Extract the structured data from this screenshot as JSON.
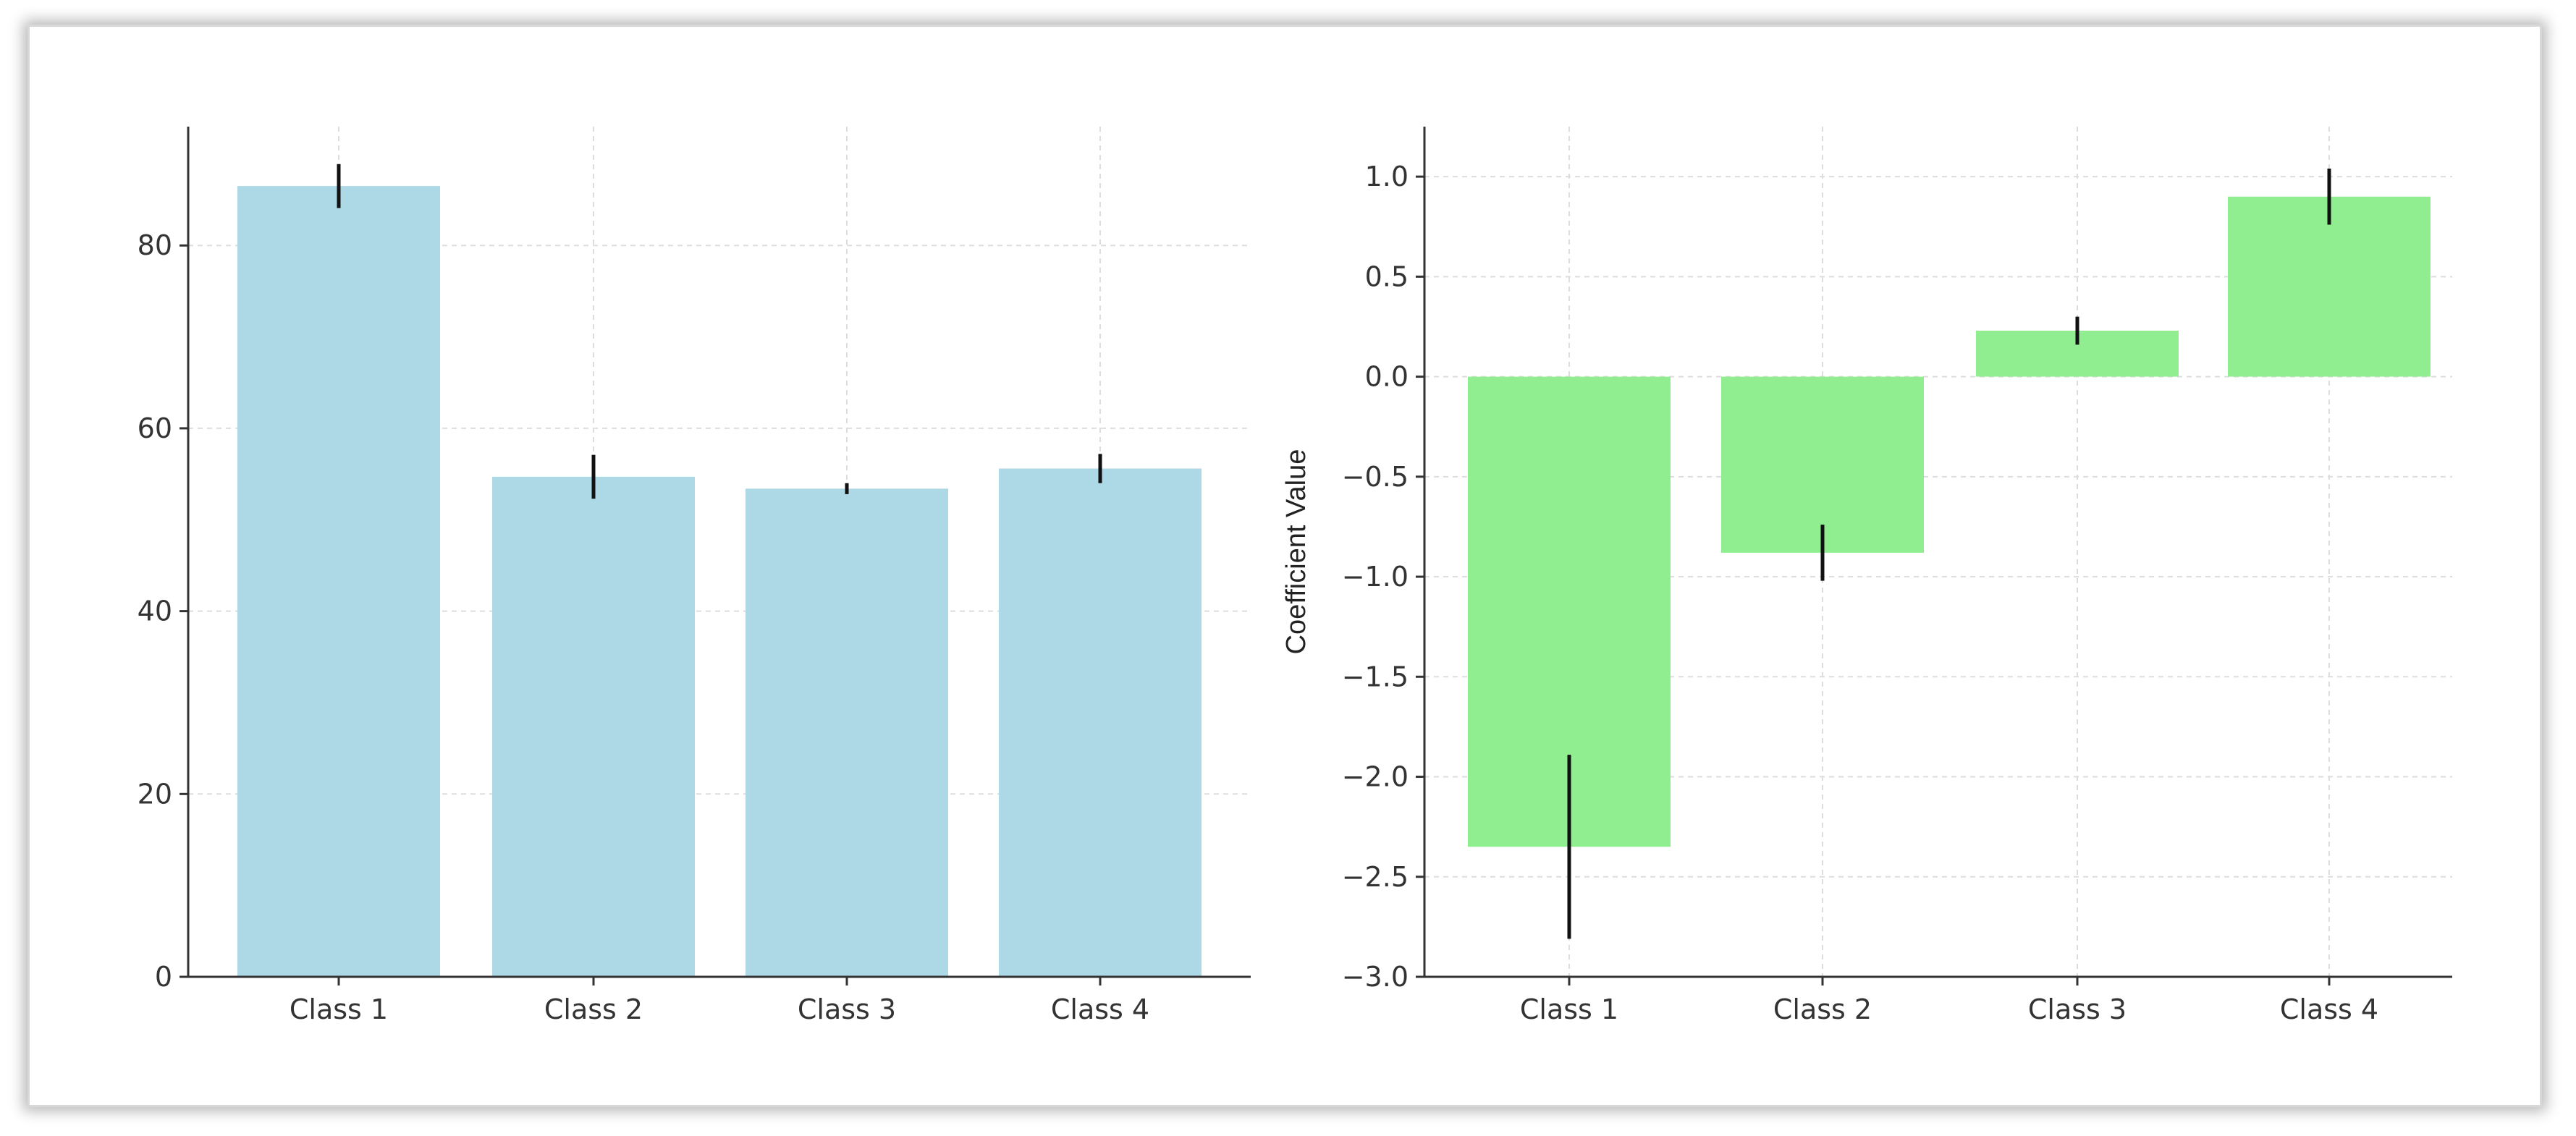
{
  "chart_data": [
    {
      "type": "bar",
      "title": "",
      "xlabel": "",
      "ylabel": "",
      "categories": [
        "Class 1",
        "Class 2",
        "Class 3",
        "Class 4"
      ],
      "values": [
        86.5,
        54.7,
        53.4,
        55.6
      ],
      "errors": [
        2.4,
        2.4,
        0.6,
        1.6
      ],
      "ylim": [
        0,
        93
      ],
      "yticks": [
        0,
        20,
        40,
        60,
        80
      ],
      "bar_color": "#add8e6",
      "grid": true
    },
    {
      "type": "bar",
      "title": "",
      "xlabel": "",
      "ylabel": "Coefficient Value",
      "categories": [
        "Class 1",
        "Class 2",
        "Class 3",
        "Class 4"
      ],
      "values": [
        -2.35,
        -0.88,
        0.23,
        0.9
      ],
      "errors": [
        0.46,
        0.14,
        0.07,
        0.14
      ],
      "ylim": [
        -3.0,
        1.25
      ],
      "yticks": [
        -3.0,
        -2.5,
        -2.0,
        -1.5,
        -1.0,
        -0.5,
        0.0,
        0.5,
        1.0
      ],
      "ytick_labels": [
        "−3.0",
        "−2.5",
        "−2.0",
        "−1.5",
        "−1.0",
        "−0.5",
        "0.0",
        "0.5",
        "1.0"
      ],
      "bar_color": "#90ee90",
      "grid": true
    }
  ]
}
